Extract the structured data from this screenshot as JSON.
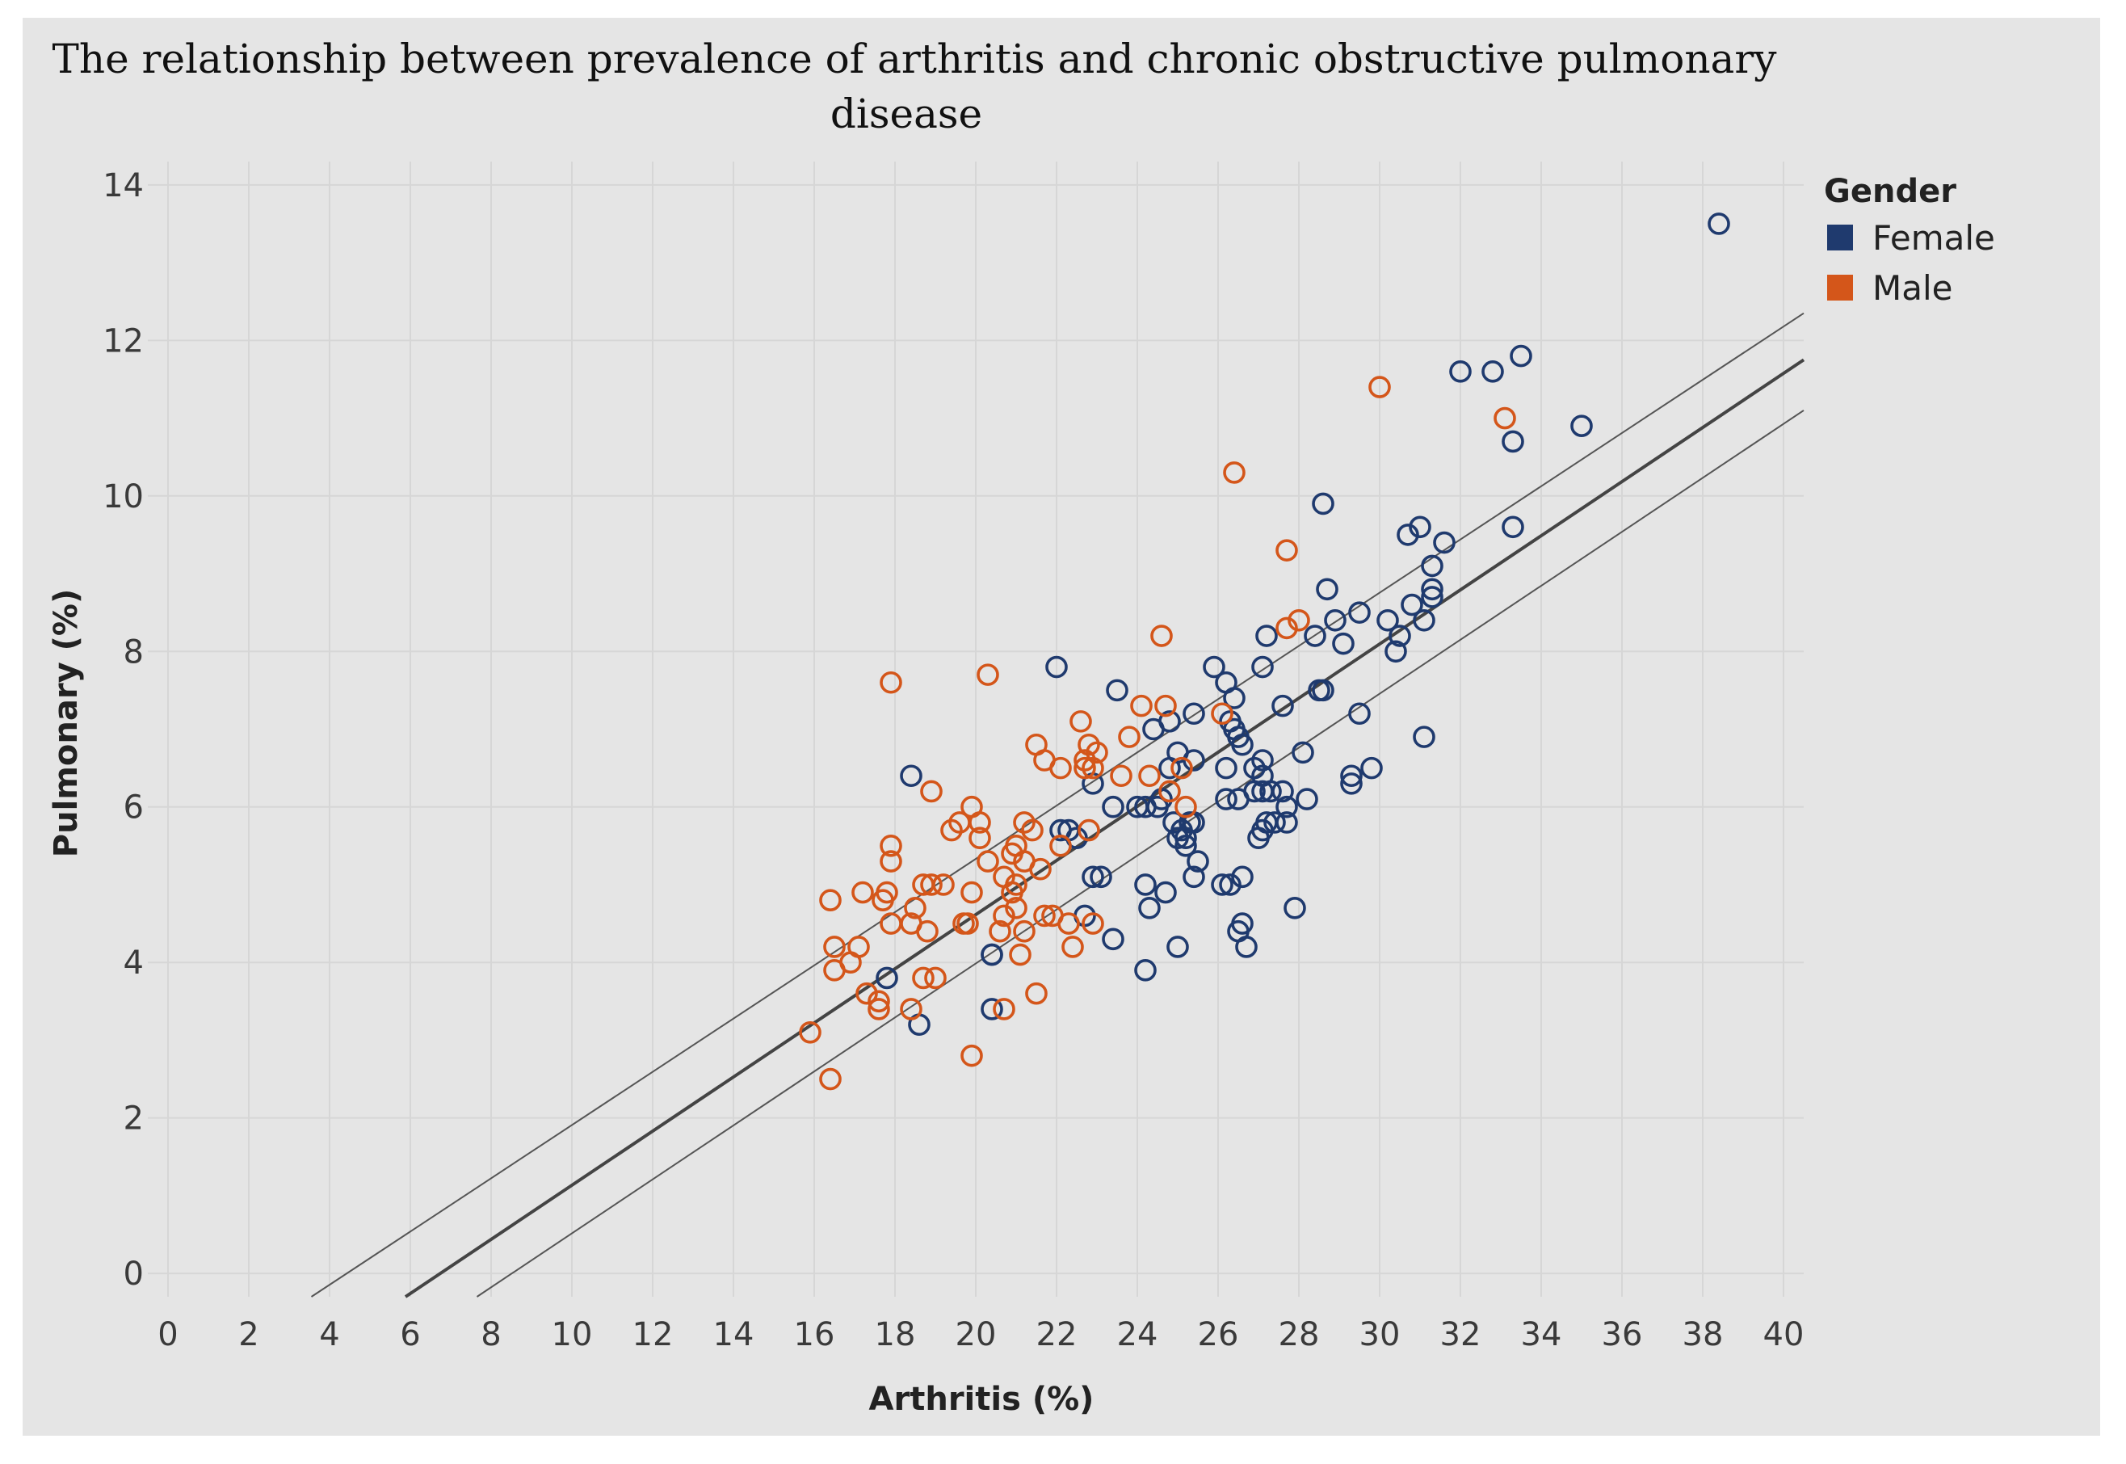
{
  "chart_data": {
    "type": "scatter",
    "title_line1": "The relationship between prevalence of arthritis and chronic obstructive pulmonary",
    "title_line2": "disease",
    "xlabel": "Arthritis (%)",
    "ylabel": "Pulmonary (%)",
    "xlim": [
      -0.5,
      40.5
    ],
    "ylim": [
      -0.3,
      14.3
    ],
    "x_ticks": [
      0,
      2,
      4,
      6,
      8,
      10,
      12,
      14,
      16,
      18,
      20,
      22,
      24,
      26,
      28,
      30,
      32,
      34,
      36,
      38,
      40
    ],
    "y_ticks": [
      0,
      2,
      4,
      6,
      8,
      10,
      12,
      14
    ],
    "grid": true,
    "legend": {
      "title": "Gender",
      "position": "top-right",
      "entries": [
        {
          "label": "Female",
          "color": "#1f3a6e"
        },
        {
          "label": "Male",
          "color": "#d4561a"
        }
      ]
    },
    "trend_line": {
      "x": [
        5.88,
        40.5
      ],
      "y": [
        -0.3,
        11.75
      ],
      "color": "#444444"
    },
    "confidence_band": {
      "upper": {
        "x": [
          3.55,
          40.5
        ],
        "y": [
          -0.3,
          12.35
        ]
      },
      "lower": {
        "x": [
          7.65,
          40.5
        ],
        "y": [
          -0.3,
          11.1
        ]
      },
      "color": "#555555"
    },
    "series": [
      {
        "name": "Female",
        "color": "#1f3a6e",
        "points": [
          [
            38.4,
            13.5
          ],
          [
            33.5,
            11.8
          ],
          [
            32.8,
            11.6
          ],
          [
            32.0,
            11.6
          ],
          [
            35.0,
            10.9
          ],
          [
            33.3,
            10.7
          ],
          [
            28.6,
            9.9
          ],
          [
            33.3,
            9.6
          ],
          [
            31.0,
            9.6
          ],
          [
            30.7,
            9.5
          ],
          [
            31.6,
            9.4
          ],
          [
            31.3,
            9.1
          ],
          [
            31.3,
            8.8
          ],
          [
            28.7,
            8.8
          ],
          [
            31.3,
            8.7
          ],
          [
            30.8,
            8.6
          ],
          [
            29.5,
            8.5
          ],
          [
            31.1,
            8.4
          ],
          [
            30.2,
            8.4
          ],
          [
            28.9,
            8.4
          ],
          [
            30.5,
            8.2
          ],
          [
            28.4,
            8.2
          ],
          [
            27.2,
            8.2
          ],
          [
            29.1,
            8.1
          ],
          [
            30.4,
            8.0
          ],
          [
            22.0,
            7.8
          ],
          [
            25.9,
            7.8
          ],
          [
            27.1,
            7.8
          ],
          [
            26.2,
            7.6
          ],
          [
            26.4,
            7.4
          ],
          [
            28.5,
            7.5
          ],
          [
            28.6,
            7.5
          ],
          [
            23.5,
            7.5
          ],
          [
            27.6,
            7.3
          ],
          [
            29.5,
            7.2
          ],
          [
            25.4,
            7.2
          ],
          [
            26.3,
            7.1
          ],
          [
            24.8,
            7.1
          ],
          [
            26.4,
            7.0
          ],
          [
            24.4,
            7.0
          ],
          [
            31.1,
            6.9
          ],
          [
            26.5,
            6.9
          ],
          [
            26.6,
            6.8
          ],
          [
            25.0,
            6.7
          ],
          [
            28.1,
            6.7
          ],
          [
            25.4,
            6.6
          ],
          [
            27.1,
            6.6
          ],
          [
            26.9,
            6.5
          ],
          [
            24.8,
            6.5
          ],
          [
            27.1,
            6.4
          ],
          [
            26.2,
            6.5
          ],
          [
            18.4,
            6.4
          ],
          [
            29.8,
            6.5
          ],
          [
            29.3,
            6.4
          ],
          [
            29.3,
            6.3
          ],
          [
            22.9,
            6.3
          ],
          [
            27.1,
            6.2
          ],
          [
            26.9,
            6.2
          ],
          [
            27.6,
            6.2
          ],
          [
            27.3,
            6.2
          ],
          [
            24.6,
            6.1
          ],
          [
            26.2,
            6.1
          ],
          [
            26.5,
            6.1
          ],
          [
            28.2,
            6.1
          ],
          [
            24.5,
            6.0
          ],
          [
            24.0,
            6.0
          ],
          [
            23.4,
            6.0
          ],
          [
            24.2,
            6.0
          ],
          [
            27.7,
            6.0
          ],
          [
            24.9,
            5.8
          ],
          [
            25.3,
            5.8
          ],
          [
            25.4,
            5.8
          ],
          [
            27.2,
            5.8
          ],
          [
            27.7,
            5.8
          ],
          [
            27.4,
            5.8
          ],
          [
            25.1,
            5.7
          ],
          [
            22.3,
            5.7
          ],
          [
            22.1,
            5.7
          ],
          [
            27.1,
            5.7
          ],
          [
            25.0,
            5.6
          ],
          [
            27.0,
            5.6
          ],
          [
            22.5,
            5.6
          ],
          [
            25.2,
            5.6
          ],
          [
            25.2,
            5.5
          ],
          [
            25.5,
            5.3
          ],
          [
            23.1,
            5.1
          ],
          [
            22.9,
            5.1
          ],
          [
            25.4,
            5.1
          ],
          [
            26.6,
            5.1
          ],
          [
            26.1,
            5.0
          ],
          [
            26.3,
            5.0
          ],
          [
            24.2,
            5.0
          ],
          [
            24.7,
            4.9
          ],
          [
            27.9,
            4.7
          ],
          [
            24.3,
            4.7
          ],
          [
            22.7,
            4.6
          ],
          [
            26.6,
            4.5
          ],
          [
            26.5,
            4.4
          ],
          [
            23.4,
            4.3
          ],
          [
            25.0,
            4.2
          ],
          [
            26.7,
            4.2
          ],
          [
            20.4,
            4.1
          ],
          [
            20.4,
            4.1
          ],
          [
            24.2,
            3.9
          ],
          [
            17.8,
            3.8
          ],
          [
            20.4,
            3.4
          ],
          [
            18.6,
            3.2
          ]
        ]
      },
      {
        "name": "Male",
        "color": "#d4561a",
        "points": [
          [
            30.0,
            11.4
          ],
          [
            33.1,
            11.0
          ],
          [
            26.4,
            10.3
          ],
          [
            27.7,
            9.3
          ],
          [
            24.6,
            8.2
          ],
          [
            27.7,
            8.3
          ],
          [
            28.0,
            8.4
          ],
          [
            17.9,
            7.6
          ],
          [
            20.3,
            7.7
          ],
          [
            24.1,
            7.3
          ],
          [
            24.7,
            7.3
          ],
          [
            26.1,
            7.2
          ],
          [
            22.6,
            7.1
          ],
          [
            23.8,
            6.9
          ],
          [
            21.5,
            6.8
          ],
          [
            22.8,
            6.8
          ],
          [
            21.7,
            6.6
          ],
          [
            23.0,
            6.7
          ],
          [
            22.7,
            6.6
          ],
          [
            25.1,
            6.5
          ],
          [
            22.7,
            6.5
          ],
          [
            22.1,
            6.5
          ],
          [
            22.9,
            6.5
          ],
          [
            23.6,
            6.4
          ],
          [
            24.3,
            6.4
          ],
          [
            24.8,
            6.2
          ],
          [
            18.9,
            6.2
          ],
          [
            19.9,
            6.0
          ],
          [
            25.2,
            6.0
          ],
          [
            20.1,
            5.8
          ],
          [
            21.2,
            5.8
          ],
          [
            19.6,
            5.8
          ],
          [
            21.4,
            5.7
          ],
          [
            22.8,
            5.7
          ],
          [
            19.4,
            5.7
          ],
          [
            20.1,
            5.6
          ],
          [
            21.0,
            5.5
          ],
          [
            17.9,
            5.5
          ],
          [
            22.1,
            5.5
          ],
          [
            20.9,
            5.4
          ],
          [
            20.3,
            5.3
          ],
          [
            21.2,
            5.3
          ],
          [
            17.9,
            5.3
          ],
          [
            21.6,
            5.2
          ],
          [
            20.7,
            5.1
          ],
          [
            19.2,
            5.0
          ],
          [
            18.7,
            5.0
          ],
          [
            18.9,
            5.0
          ],
          [
            21.0,
            5.0
          ],
          [
            17.2,
            4.9
          ],
          [
            17.8,
            4.9
          ],
          [
            19.9,
            4.9
          ],
          [
            20.9,
            4.9
          ],
          [
            16.4,
            4.8
          ],
          [
            17.7,
            4.8
          ],
          [
            18.5,
            4.7
          ],
          [
            21.0,
            4.7
          ],
          [
            21.9,
            4.6
          ],
          [
            21.7,
            4.6
          ],
          [
            20.7,
            4.6
          ],
          [
            17.9,
            4.5
          ],
          [
            19.7,
            4.5
          ],
          [
            19.8,
            4.5
          ],
          [
            18.4,
            4.5
          ],
          [
            22.3,
            4.5
          ],
          [
            22.9,
            4.5
          ],
          [
            18.8,
            4.4
          ],
          [
            20.6,
            4.4
          ],
          [
            21.2,
            4.4
          ],
          [
            16.5,
            4.2
          ],
          [
            17.1,
            4.2
          ],
          [
            22.4,
            4.2
          ],
          [
            16.9,
            4.0
          ],
          [
            21.1,
            4.1
          ],
          [
            16.5,
            3.9
          ],
          [
            19.0,
            3.8
          ],
          [
            18.7,
            3.8
          ],
          [
            17.3,
            3.6
          ],
          [
            21.5,
            3.6
          ],
          [
            17.6,
            3.5
          ],
          [
            17.6,
            3.4
          ],
          [
            18.4,
            3.4
          ],
          [
            20.7,
            3.4
          ],
          [
            15.9,
            3.1
          ],
          [
            19.9,
            2.8
          ],
          [
            16.4,
            2.5
          ]
        ]
      }
    ]
  }
}
